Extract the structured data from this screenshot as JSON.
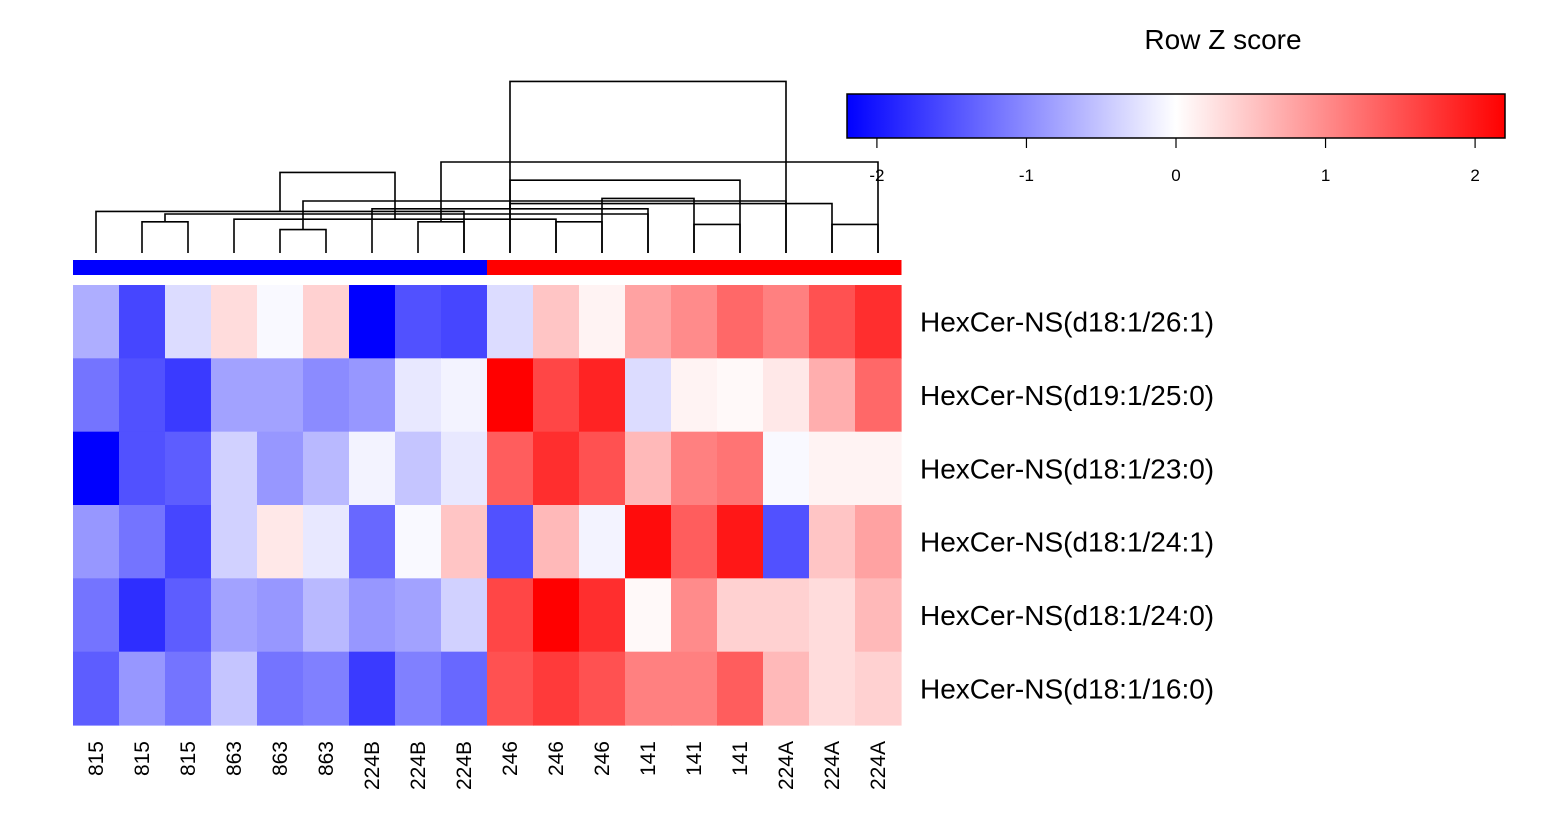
{
  "chart_data": {
    "type": "heatmap",
    "legend": {
      "title": "Row Z score",
      "range": [
        -2.2,
        2.2
      ],
      "ticks": [
        -2,
        -1,
        0,
        1,
        2
      ],
      "colors": {
        "low": "#0000ff",
        "mid": "#ffffff",
        "high": "#ff0000"
      },
      "placement": "top-right"
    },
    "columns": [
      "815",
      "815",
      "815",
      "863",
      "863",
      "863",
      "224B",
      "224B",
      "224B",
      "246",
      "246",
      "246",
      "141",
      "141",
      "141",
      "224A",
      "224A",
      "224A"
    ],
    "column_groups": [
      {
        "color": "#0000ff",
        "count": 9
      },
      {
        "color": "#ff0000",
        "count": 9
      }
    ],
    "rows": [
      "HexCer-NS(d18:1/26:1)",
      "HexCer-NS(d19:1/25:0)",
      "HexCer-NS(d18:1/23:0)",
      "HexCer-NS(d18:1/24:1)",
      "HexCer-NS(d18:1/24:0)",
      "HexCer-NS(d18:1/16:0)"
    ],
    "values": [
      [
        -0.7,
        -1.6,
        -0.3,
        0.3,
        -0.05,
        0.4,
        -2.2,
        -1.5,
        -1.6,
        -0.3,
        0.5,
        0.1,
        0.8,
        1.0,
        1.3,
        1.1,
        1.5,
        1.8
      ],
      [
        -1.2,
        -1.5,
        -1.7,
        -0.8,
        -0.8,
        -1.0,
        -0.9,
        -0.2,
        -0.1,
        2.2,
        1.6,
        1.9,
        -0.3,
        0.1,
        0.05,
        0.2,
        0.7,
        1.3
      ],
      [
        -2.2,
        -1.5,
        -1.4,
        -0.4,
        -0.9,
        -0.6,
        -0.1,
        -0.5,
        -0.2,
        1.4,
        1.8,
        1.5,
        0.6,
        1.1,
        1.2,
        -0.05,
        0.1,
        0.1
      ],
      [
        -0.9,
        -1.2,
        -1.6,
        -0.4,
        0.2,
        -0.2,
        -1.3,
        -0.05,
        0.5,
        -1.5,
        0.6,
        -0.1,
        2.1,
        1.4,
        2.0,
        -1.5,
        0.5,
        0.8
      ],
      [
        -1.2,
        -1.8,
        -1.4,
        -0.8,
        -0.9,
        -0.6,
        -0.9,
        -0.8,
        -0.4,
        1.6,
        2.2,
        1.8,
        0.05,
        1.0,
        0.4,
        0.4,
        0.3,
        0.6
      ],
      [
        -1.4,
        -0.9,
        -1.2,
        -0.5,
        -1.2,
        -1.1,
        -1.7,
        -1.1,
        -1.3,
        1.5,
        1.7,
        1.5,
        1.1,
        1.1,
        1.4,
        0.6,
        0.3,
        0.4
      ]
    ],
    "dendrogram": {
      "merges": [
        [
          1,
          2,
          0.6
        ],
        [
          0,
          8,
          0.8
        ],
        [
          4,
          5,
          0.45
        ],
        [
          3,
          10,
          0.65
        ],
        [
          7,
          8,
          0.6
        ],
        [
          6,
          12,
          0.85
        ],
        [
          11,
          13,
          1.05
        ],
        [
          9,
          14,
          1.4
        ],
        [
          10,
          11,
          0.6
        ],
        [
          9,
          16,
          0.95
        ],
        [
          13,
          14,
          0.55
        ],
        [
          12,
          18,
          0.75
        ],
        [
          16,
          17,
          0.55
        ],
        [
          15,
          20,
          1.0
        ],
        [
          19,
          21,
          1.55
        ],
        [
          17,
          22,
          1.75
        ],
        [
          15,
          23,
          3.3
        ]
      ]
    }
  }
}
